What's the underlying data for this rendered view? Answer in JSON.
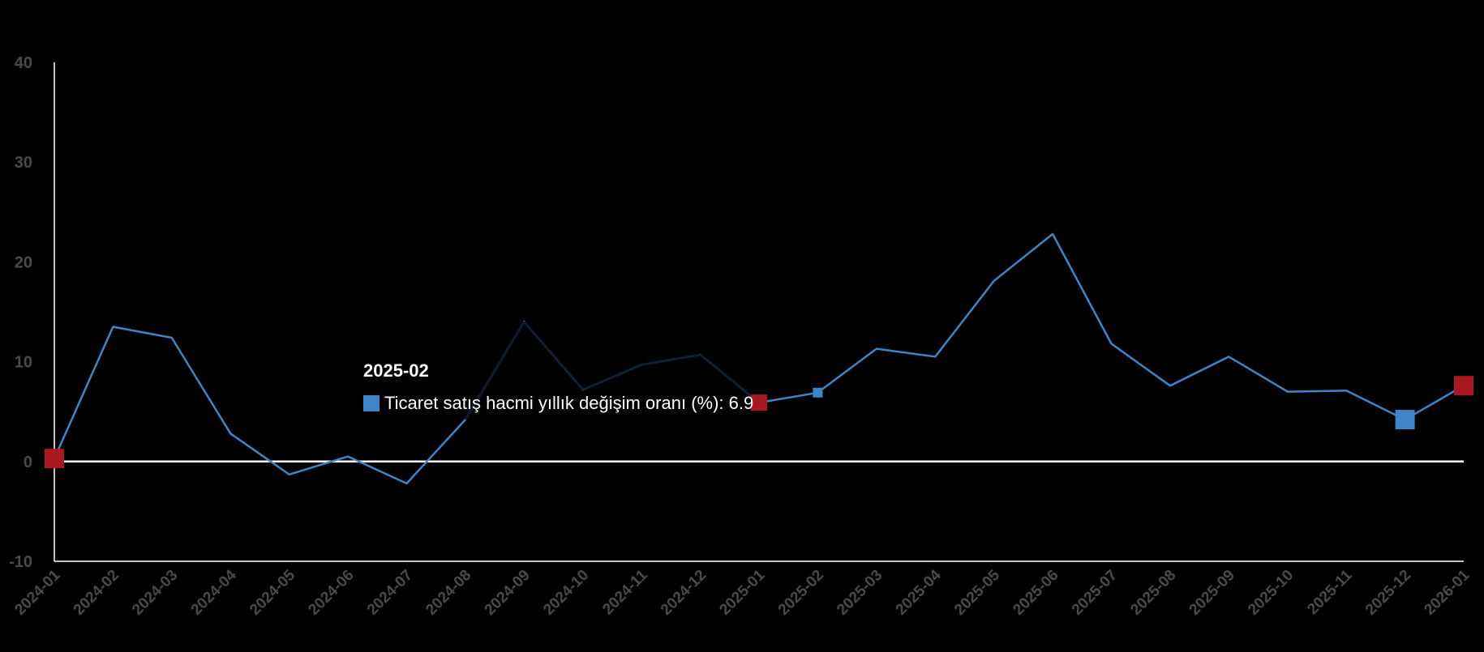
{
  "chart_data": {
    "type": "line",
    "categories": [
      "2024-01",
      "2024-02",
      "2024-03",
      "2024-04",
      "2024-05",
      "2024-06",
      "2024-07",
      "2024-08",
      "2024-09",
      "2024-10",
      "2024-11",
      "2024-12",
      "2025-01",
      "2025-02",
      "2025-03",
      "2025-04",
      "2025-05",
      "2025-06",
      "2025-07",
      "2025-08",
      "2025-09",
      "2025-10",
      "2025-11",
      "2025-12",
      "2026-01"
    ],
    "series": [
      {
        "name": "Ticaret satış hacmi yıllık değişim oranı (%)",
        "values": [
          0.3,
          13.5,
          12.4,
          2.8,
          -1.3,
          0.5,
          -2.2,
          4.2,
          14.0,
          7.2,
          9.7,
          10.7,
          5.9,
          6.9,
          11.3,
          10.5,
          18.1,
          22.8,
          11.8,
          7.6,
          10.5,
          7.0,
          7.1,
          4.2,
          7.6
        ],
        "color": "#3d85c6"
      }
    ],
    "ylim": [
      -10,
      40
    ],
    "yticks": [
      -10,
      0,
      10,
      20,
      30,
      40
    ],
    "ylabel": "",
    "xlabel": "",
    "title": "",
    "grid": false,
    "legend": "none",
    "markers": {
      "red": {
        "color": "#a8191f",
        "indices": [
          0,
          12,
          24
        ]
      },
      "blue": {
        "color": "#3d85c6",
        "indices": [
          13,
          23
        ]
      }
    },
    "tooltip": {
      "title": "2025-02",
      "series_label": "Ticaret satış hacmi yıllık değişim oranı (%)",
      "value": "6.9",
      "swatch_color": "#3d85c6"
    }
  }
}
